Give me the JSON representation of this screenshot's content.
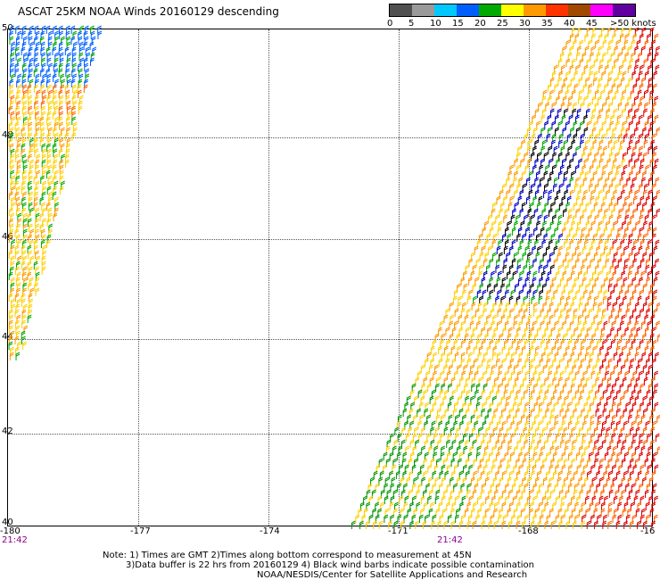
{
  "title": "ASCAT 25KM NOAA Winds 20160129 descending",
  "legend": {
    "colors": [
      "#505050",
      "#9a9a9a",
      "#00c8ff",
      "#0060ff",
      "#0000c8",
      "#009600",
      "#00d000",
      "#ffff00",
      "#ffd000",
      "#ff9900",
      "#ff6600",
      "#ff3300",
      "#e00000",
      "#a04800",
      "#d28c3c",
      "#ff00ff",
      "#c000c0",
      "#6000a0"
    ],
    "labels": [
      "0",
      "5",
      "10",
      "15",
      "20",
      "25",
      "30",
      "35",
      "40",
      "45",
      ">50 knots"
    ]
  },
  "axes": {
    "lat_labels": [
      "50",
      "48",
      "46",
      "44",
      "42",
      "40"
    ],
    "lon_labels": [
      "-180",
      "-177",
      "-174",
      "-171",
      "-168",
      "-16"
    ]
  },
  "times": [
    "21:42",
    "21:42"
  ],
  "notes": [
    "Note: 1) Times are GMT 2)Times along bottom correspond to measurement at 45N",
    "3)Data buffer is 22 hrs from 20160129 4) Black wind barbs indicate possible contamination",
    "NOAA/NESDIS/Center for Satellite Applications and Research"
  ]
}
